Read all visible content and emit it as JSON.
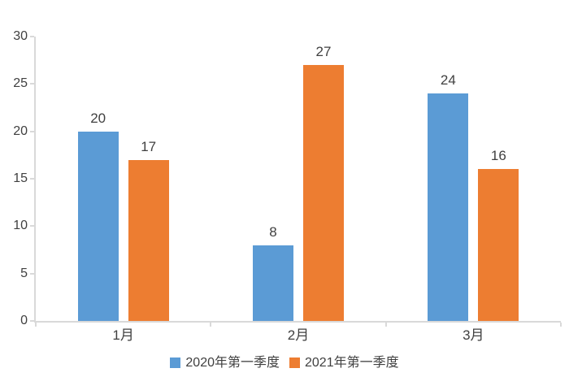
{
  "chart_data": {
    "type": "bar",
    "categories": [
      "1月",
      "2月",
      "3月"
    ],
    "series": [
      {
        "name": "2020年第一季度",
        "color": "#5B9BD5",
        "values": [
          20,
          8,
          24
        ]
      },
      {
        "name": "2021年第一季度",
        "color": "#ED7D31",
        "values": [
          17,
          27,
          16
        ]
      }
    ],
    "title": "",
    "xlabel": "",
    "ylabel": "",
    "ylim": [
      0,
      30
    ],
    "yticks": [
      0,
      5,
      10,
      15,
      20,
      25,
      30
    ],
    "grid": false,
    "legend_position": "bottom",
    "data_labels": true
  },
  "colors": {
    "axis": "#D9D9D9",
    "text": "#404040",
    "background": "#FFFFFF"
  }
}
